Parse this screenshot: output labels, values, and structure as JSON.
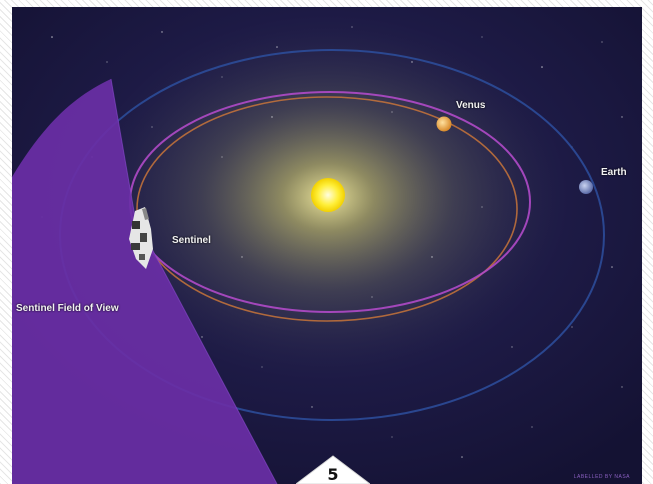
{
  "diagram": {
    "labels": {
      "venus": "Venus",
      "earth": "Earth",
      "sentinel": "Sentinel",
      "field_of_view": "Sentinel Field of View"
    },
    "credit": "LABELLED BY NASA",
    "page_number": "5",
    "colors": {
      "space": "#1a1740",
      "sun": "#ffe600",
      "venus_orbit": "#b04ac8",
      "earth_orbit": "#2d4f9e",
      "inner_orbit": "#c8743a",
      "field_of_view": "#6a2fa6",
      "venus": "#e8a043",
      "earth": "#7f8fc4"
    }
  }
}
